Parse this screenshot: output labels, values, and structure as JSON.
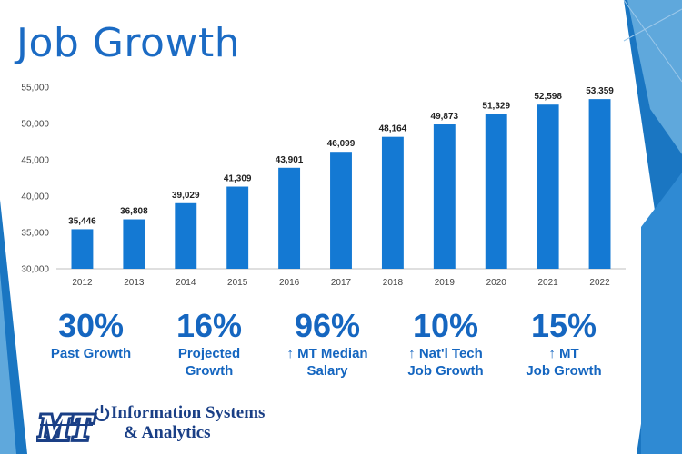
{
  "slide": {
    "title": "Job Growth",
    "logo": {
      "mark_text": "MT",
      "name_line1": "Information Systems",
      "name_line2": "& Analytics"
    }
  },
  "chart_data": {
    "type": "bar",
    "categories": [
      "2012",
      "2013",
      "2014",
      "2015",
      "2016",
      "2017",
      "2018",
      "2019",
      "2020",
      "2021",
      "2022"
    ],
    "values": [
      35446,
      36808,
      39029,
      41309,
      43901,
      46099,
      48164,
      49873,
      51329,
      52598,
      53359
    ],
    "value_labels": [
      "35,446",
      "36,808",
      "39,029",
      "41,309",
      "43,901",
      "46,099",
      "48,164",
      "49,873",
      "51,329",
      "52,598",
      "53,359"
    ],
    "ylim": [
      30000,
      55000
    ],
    "yticks": [
      30000,
      35000,
      40000,
      45000,
      50000,
      55000
    ],
    "ytick_labels": [
      "30,000",
      "35,000",
      "40,000",
      "45,000",
      "50,000",
      "55,000"
    ],
    "grid": false,
    "bar_color": "#1479d3"
  },
  "stats": [
    {
      "value": "30%",
      "label_lines": [
        "Past Growth"
      ]
    },
    {
      "value": "16%",
      "label_lines": [
        "Projected",
        "Growth"
      ]
    },
    {
      "value": "96%",
      "label_lines": [
        "↑ MT Median",
        "Salary"
      ]
    },
    {
      "value": "10%",
      "label_lines": [
        "↑ Nat'l Tech",
        "Job Growth"
      ]
    },
    {
      "value": "15%",
      "label_lines": [
        "↑ MT",
        "Job Growth"
      ]
    }
  ],
  "colors": {
    "accent": "#1b6bc4",
    "stat_text": "#1566c0",
    "logo_text": "#1a3f86"
  }
}
